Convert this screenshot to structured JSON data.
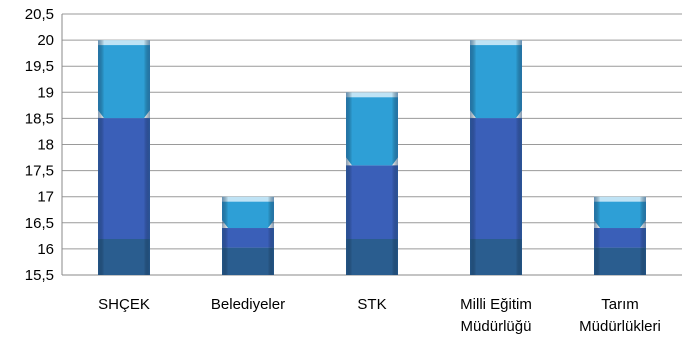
{
  "chart_data": {
    "type": "bar",
    "title": "",
    "xlabel": "",
    "ylabel": "",
    "categories": [
      [
        "SHÇEK"
      ],
      [
        "Belediyeler"
      ],
      [
        "STK"
      ],
      [
        "Milli Eğitim",
        "Müdürlüğü"
      ],
      [
        "Tarım",
        "Müdürlükleri"
      ]
    ],
    "values": [
      20,
      17,
      19,
      20,
      17
    ],
    "ylim": [
      15.5,
      20.5
    ],
    "yticks": [
      15.5,
      16,
      16.5,
      17,
      17.5,
      18,
      18.5,
      19,
      19.5,
      20,
      20.5
    ],
    "ytick_labels": [
      "15,5",
      "16",
      "16,5",
      "17",
      "17,5",
      "18",
      "18,5",
      "19",
      "19,5",
      "20",
      "20,5"
    ],
    "grid": true,
    "legend": "none",
    "colors": {
      "bar_dark": "#2a5d8f",
      "bar_mid": "#3a5fb8",
      "bar_light": "#2e9fd6",
      "grid": "#9a9a9a",
      "axis": "#8a8a8a"
    }
  }
}
